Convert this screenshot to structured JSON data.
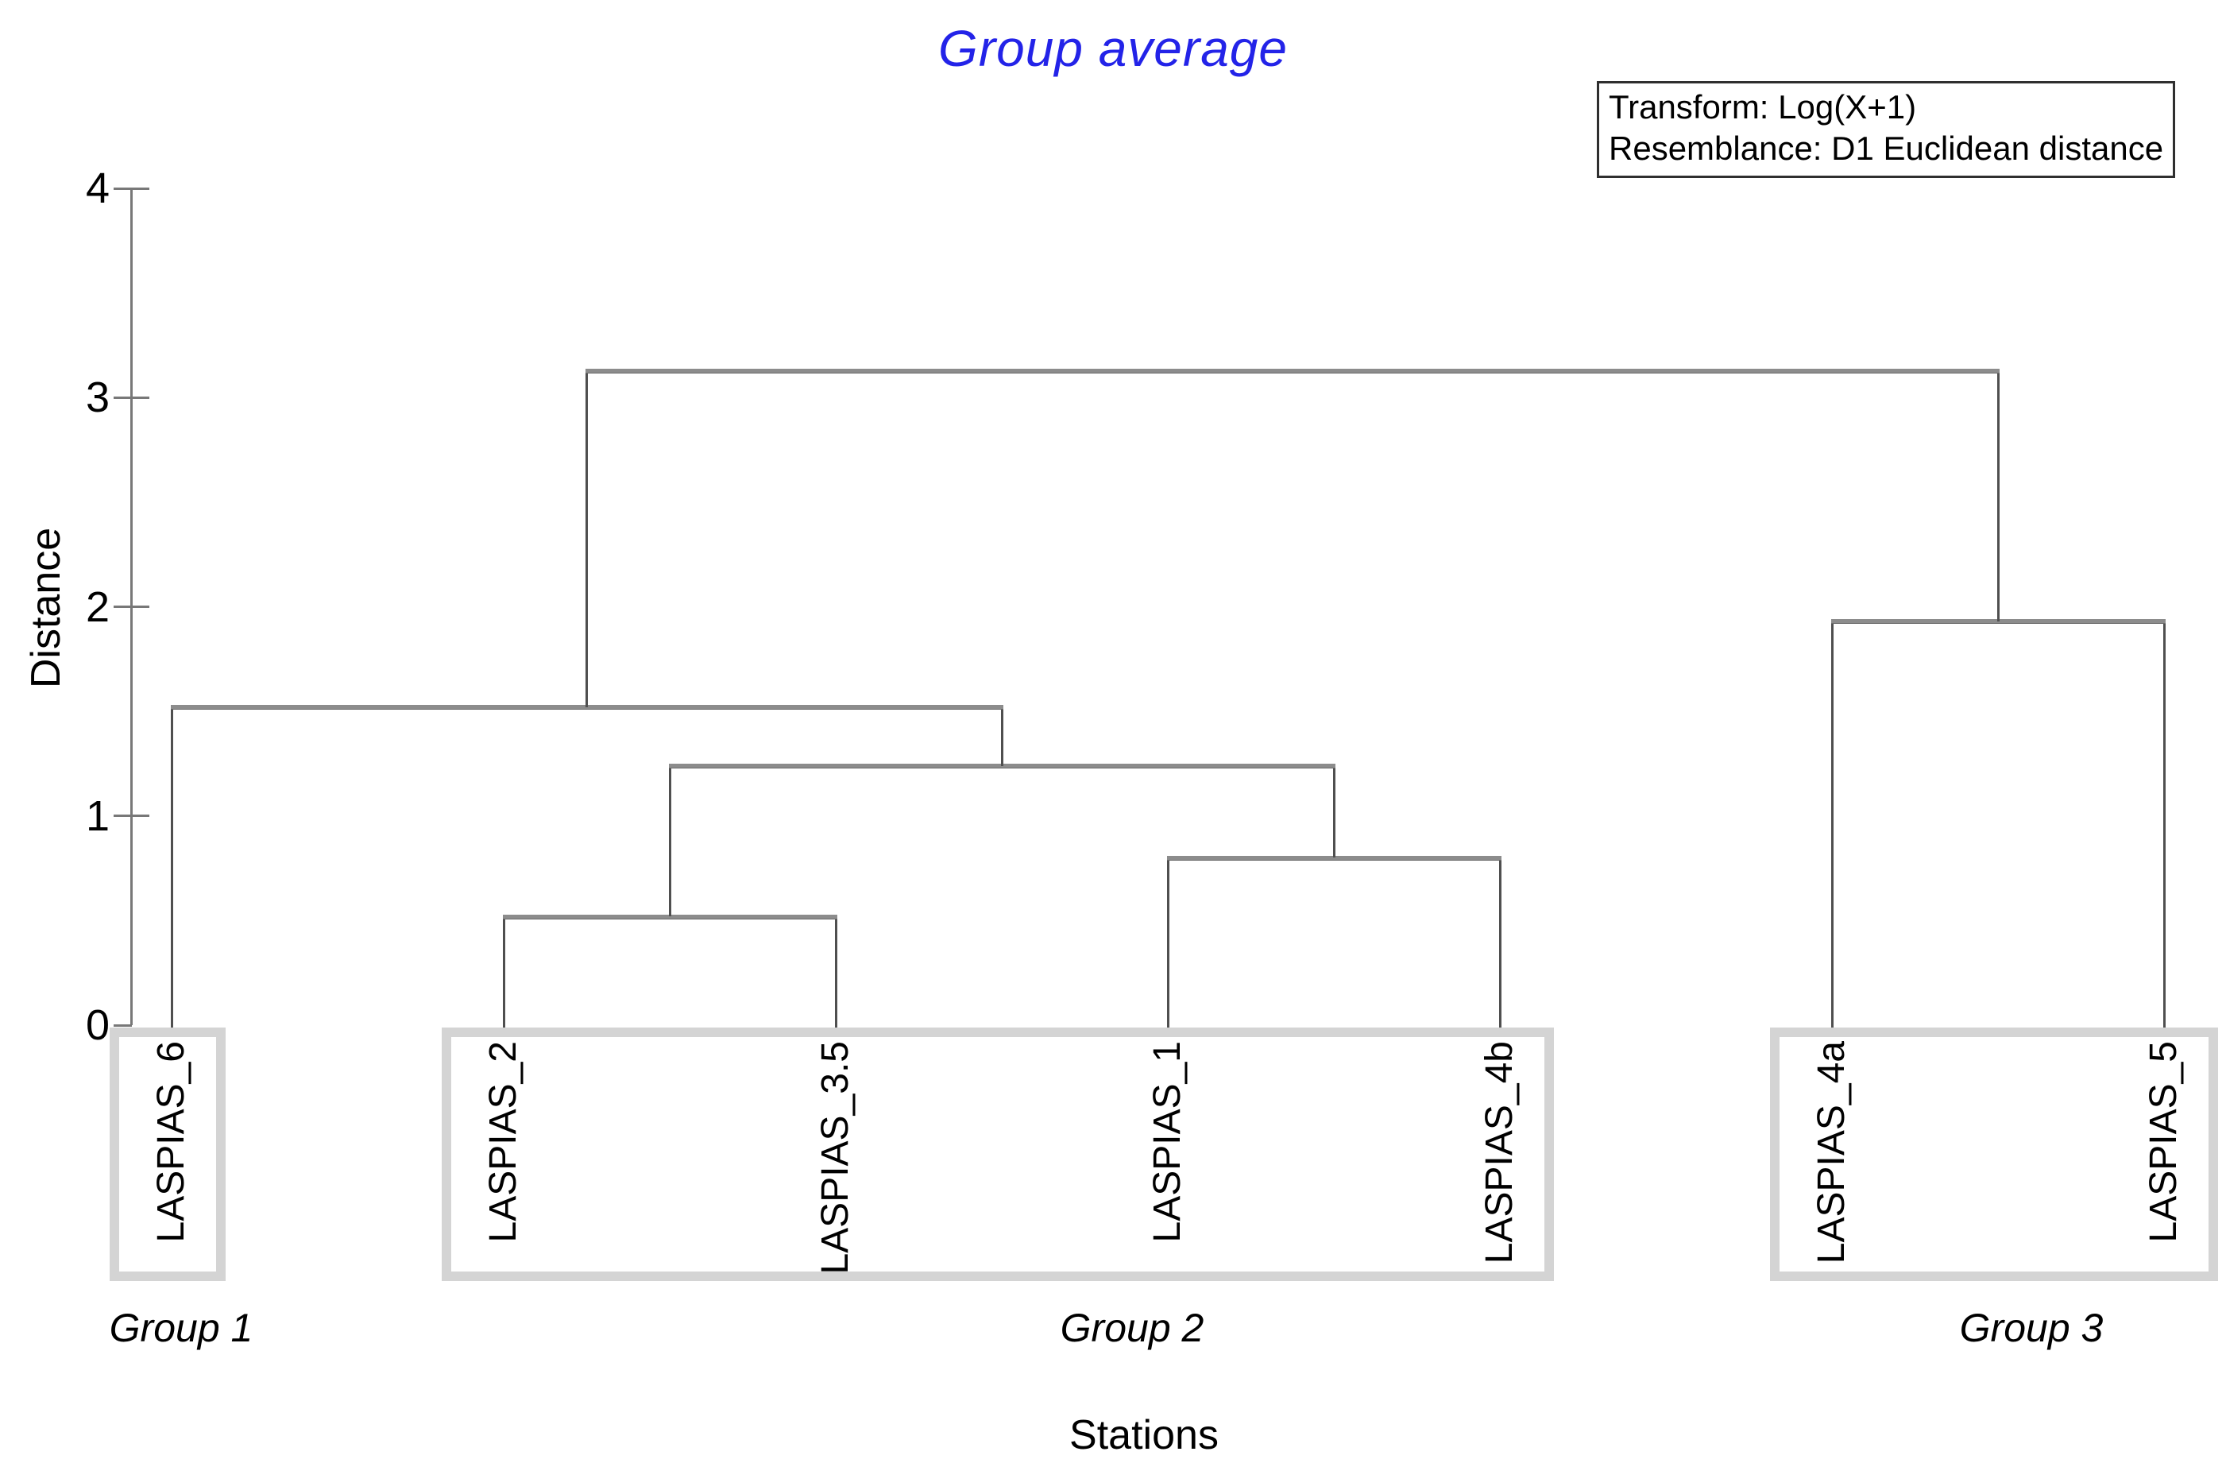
{
  "title": "Group average",
  "info_box": {
    "line1": "Transform: Log(X+1)",
    "line2": "Resemblance: D1 Euclidean distance"
  },
  "axes": {
    "y_label": "Distance",
    "x_label": "Stations",
    "y_ticks": [
      "4",
      "3",
      "2",
      "1",
      "0"
    ],
    "y_tick_values": [
      4,
      3,
      2,
      1,
      0
    ],
    "y_min": 0,
    "y_max": 4,
    "grid": "off"
  },
  "chart_data": {
    "type": "dendrogram",
    "title": "Group average",
    "orientation": "top-down",
    "ylabel": "Distance",
    "xlabel": "Stations",
    "ylim": [
      0,
      4
    ],
    "leaves": [
      "LASPIAS_6",
      "LASPIAS_2",
      "LASPIAS_3.5",
      "LASPIAS_1",
      "LASPIAS_4b",
      "LASPIAS_4a",
      "LASPIAS_5"
    ],
    "merges": [
      {
        "id": "m1",
        "children": [
          "LASPIAS_2",
          "LASPIAS_3.5"
        ],
        "distance": 0.52
      },
      {
        "id": "m2",
        "children": [
          "LASPIAS_1",
          "LASPIAS_4b"
        ],
        "distance": 0.8
      },
      {
        "id": "m3",
        "children": [
          "m1",
          "m2"
        ],
        "distance": 1.24
      },
      {
        "id": "m4",
        "children": [
          "LASPIAS_6",
          "m3"
        ],
        "distance": 1.52
      },
      {
        "id": "m5",
        "children": [
          "LASPIAS_4a",
          "LASPIAS_5"
        ],
        "distance": 1.93
      },
      {
        "id": "root",
        "children": [
          "m4",
          "m5"
        ],
        "distance": 3.13
      }
    ],
    "groups": [
      {
        "label": "Group 1",
        "leaves": [
          "LASPIAS_6"
        ]
      },
      {
        "label": "Group 2",
        "leaves": [
          "LASPIAS_2",
          "LASPIAS_3.5",
          "LASPIAS_1",
          "LASPIAS_4b"
        ]
      },
      {
        "label": "Group 3",
        "leaves": [
          "LASPIAS_4a",
          "LASPIAS_5"
        ]
      }
    ]
  },
  "colors": {
    "title": "#2323e8",
    "line_vertical": "#4f4f4f",
    "line_horizontal": "#8c8c8c",
    "axis": "#787878",
    "box_border": "#d4d4d4",
    "text": "#000000"
  }
}
